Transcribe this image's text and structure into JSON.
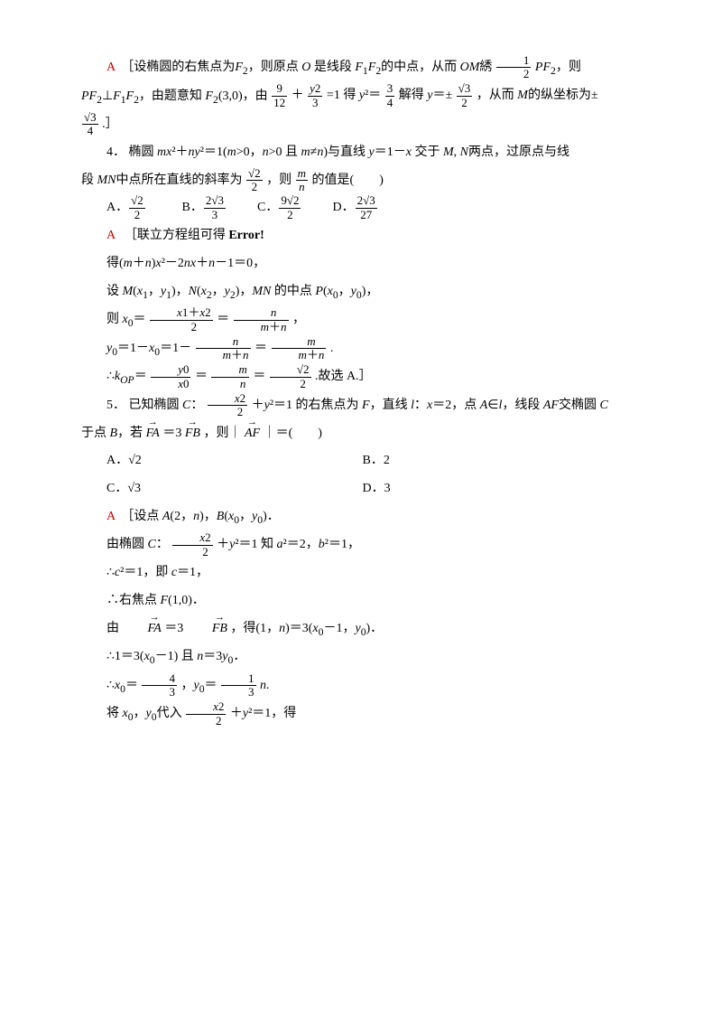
{
  "colors": {
    "text": "#000000",
    "answer": "#c00000",
    "background": "#ffffff",
    "fraction_rule": "#000000"
  },
  "typography": {
    "body_font": "SimSun / 宋体",
    "math_font": "Times New Roman",
    "body_fontsize_pt": 10.5,
    "line_height": 2.2
  },
  "sol3": {
    "label": "A",
    "open": "［设椭圆的右焦点为",
    "F2": "F₂",
    "seg1": "，则原点 ",
    "O": "O",
    "seg2": " 是线段 ",
    "F1F2": "F₁F₂",
    "seg3": "的中点，从而 ",
    "OM": "OM",
    "text_ch": "綉",
    "PF2": "PF₂",
    "seg4": "，则",
    "line2a": "PF₂⊥F₁F₂，由题意知 F₂(3,0)，由",
    "eq1": "=1 得 ",
    "eq2": "解得 ",
    "ypm": "y=±",
    "seg5": "，从而 ",
    "M": "M",
    "seg6": "的纵坐标为±",
    "end": ".］",
    "f1num": "1",
    "f1den": "2",
    "f2num": "9",
    "f2den": "12",
    "f3num": "y2",
    "f3den": "3",
    "f4num": "3",
    "f4den": "4",
    "f5num": "√3",
    "f5den": "2",
    "f6num": "√3",
    "f6den": "4",
    "y2eq": "y²="
  },
  "q4": {
    "num": "4．",
    "stem1": "椭圆 ",
    "eq": "mx²＋ny²＝1(m>0，n>0 且 m≠n)",
    "stem2": "与直线 ",
    "line": "y＝1－x",
    "stem3": " 交于 ",
    "MN": "M, N",
    "stem4": "两点，过原点与线",
    "stem5": "段 ",
    "MNmid": "MN",
    "stem6": "中点所在直线的斜率为",
    "stem7": "，则",
    "stem8": "的值是(　　)",
    "slope_num": "√2",
    "slope_den": "2",
    "ratio_num": "m",
    "ratio_den": "n",
    "optA_label": "A．",
    "optA_num": "√2",
    "optA_den": "2",
    "optB_label": "B．",
    "optB_num": "2√3",
    "optB_den": "3",
    "optC_label": "C．",
    "optC_num": "9√2",
    "optC_den": "2",
    "optD_label": "D．",
    "optD_num": "2√3",
    "optD_den": "27"
  },
  "sol4": {
    "label": "A",
    "l1": "［联立方程组可得",
    "err": "Error!",
    "l2": "得(m＋n)x²－2nx＋n－1＝0，",
    "l3a": "设 M(x₁，y₁)，N(x₂，y₂)，MN 的中点 P(x₀，y₀)，",
    "l4a": "则 x₀＝",
    "l4num1": "x1＋x2",
    "l4den1": "2",
    "l4eq": "＝",
    "l4num2": "n",
    "l4den2": "m＋n",
    "l4end": "，",
    "l5a": "y₀＝1－x₀＝1－",
    "l5num1": "n",
    "l5den1": "m＋n",
    "l5eq": "＝",
    "l5num2": "m",
    "l5den2": "m＋n",
    "l5end": ".",
    "l6a": "∴k",
    "l6sub": "OP",
    "l6eq1": "＝",
    "l6num1": "y0",
    "l6den1": "x0",
    "l6eq2": "＝",
    "l6num2": "m",
    "l6den2": "n",
    "l6eq3": "＝",
    "l6num3": "√2",
    "l6den3": "2",
    "l6end": ".故选 A.］"
  },
  "q5": {
    "num": "5．",
    "stem1": "已知椭圆 ",
    "C": "C",
    "colon": "：",
    "eqnum": "x2",
    "eqden": "2",
    "eq2": "＋y²＝1 的右焦点为 ",
    "F": "F",
    "stem2": "，直线 ",
    "l": "l",
    "stem3": "：x＝2，点 ",
    "A": "A",
    "in": "∈",
    "stem4": "，线段 ",
    "AF": "AF",
    "stem5": "交椭圆 ",
    "stem6": "于点 ",
    "B": "B",
    "stem7": "，若",
    "FA": "FA",
    "eq3": "＝3",
    "FB": "FB",
    "stem8": "，则｜",
    "AFv": "AF",
    "stem9": "｜＝(　　)",
    "optA_label": "A．",
    "optA": "√2",
    "optB_label": "B．",
    "optB": "2",
    "optC_label": "C．",
    "optC": "√3",
    "optD_label": "D．",
    "optD": "3"
  },
  "sol5": {
    "label": "A",
    "l1": "［设点 A(2，n)，B(x₀，y₀)．",
    "l2a": "由椭圆 C：",
    "l2num": "x2",
    "l2den": "2",
    "l2b": "＋y²＝1 知 a²＝2，b²＝1，",
    "l3": "∴c²＝1，即 c＝1，",
    "l4": "∴右焦点 F(1,0)．",
    "l5a": "由",
    "l5FA": "FA",
    "l5eq": "＝3",
    "l5FB": "FB",
    "l5b": "，得(1，n)＝3(x₀－1，y₀)．",
    "l6": "∴1＝3(x₀－1) 且 n＝3y₀．",
    "l7a": "∴x₀＝",
    "l7num1": "4",
    "l7den1": "3",
    "l7b": "，y₀＝",
    "l7num2": "1",
    "l7den2": "3",
    "l7c": "n.",
    "l8a": "将 x₀，y₀代入",
    "l8num": "x2",
    "l8den": "2",
    "l8b": "＋y²＝1，得"
  }
}
